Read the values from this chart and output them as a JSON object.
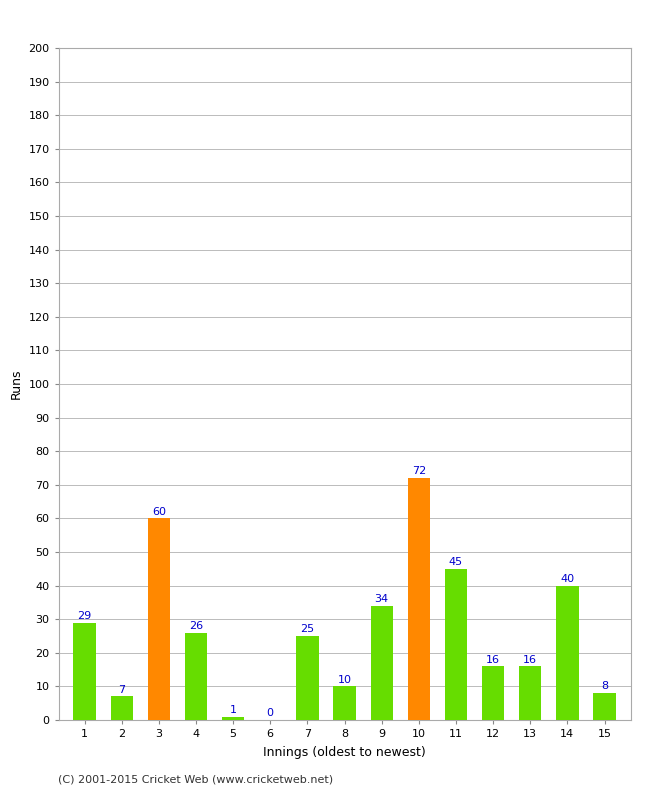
{
  "innings": [
    1,
    2,
    3,
    4,
    5,
    6,
    7,
    8,
    9,
    10,
    11,
    12,
    13,
    14,
    15
  ],
  "values": [
    29,
    7,
    60,
    26,
    1,
    0,
    25,
    10,
    34,
    72,
    45,
    16,
    16,
    40,
    8
  ],
  "colors": [
    "#66dd00",
    "#66dd00",
    "#ff8800",
    "#66dd00",
    "#66dd00",
    "#66dd00",
    "#66dd00",
    "#66dd00",
    "#66dd00",
    "#ff8800",
    "#66dd00",
    "#66dd00",
    "#66dd00",
    "#66dd00",
    "#66dd00"
  ],
  "xlabel": "Innings (oldest to newest)",
  "ylabel": "Runs",
  "ylim": [
    0,
    200
  ],
  "yticks": [
    0,
    10,
    20,
    30,
    40,
    50,
    60,
    70,
    80,
    90,
    100,
    110,
    120,
    130,
    140,
    150,
    160,
    170,
    180,
    190,
    200
  ],
  "label_color": "#0000cc",
  "footer": "(C) 2001-2015 Cricket Web (www.cricketweb.net)",
  "bg_color": "#ffffff",
  "grid_color": "#bbbbbb",
  "bar_width": 0.6
}
